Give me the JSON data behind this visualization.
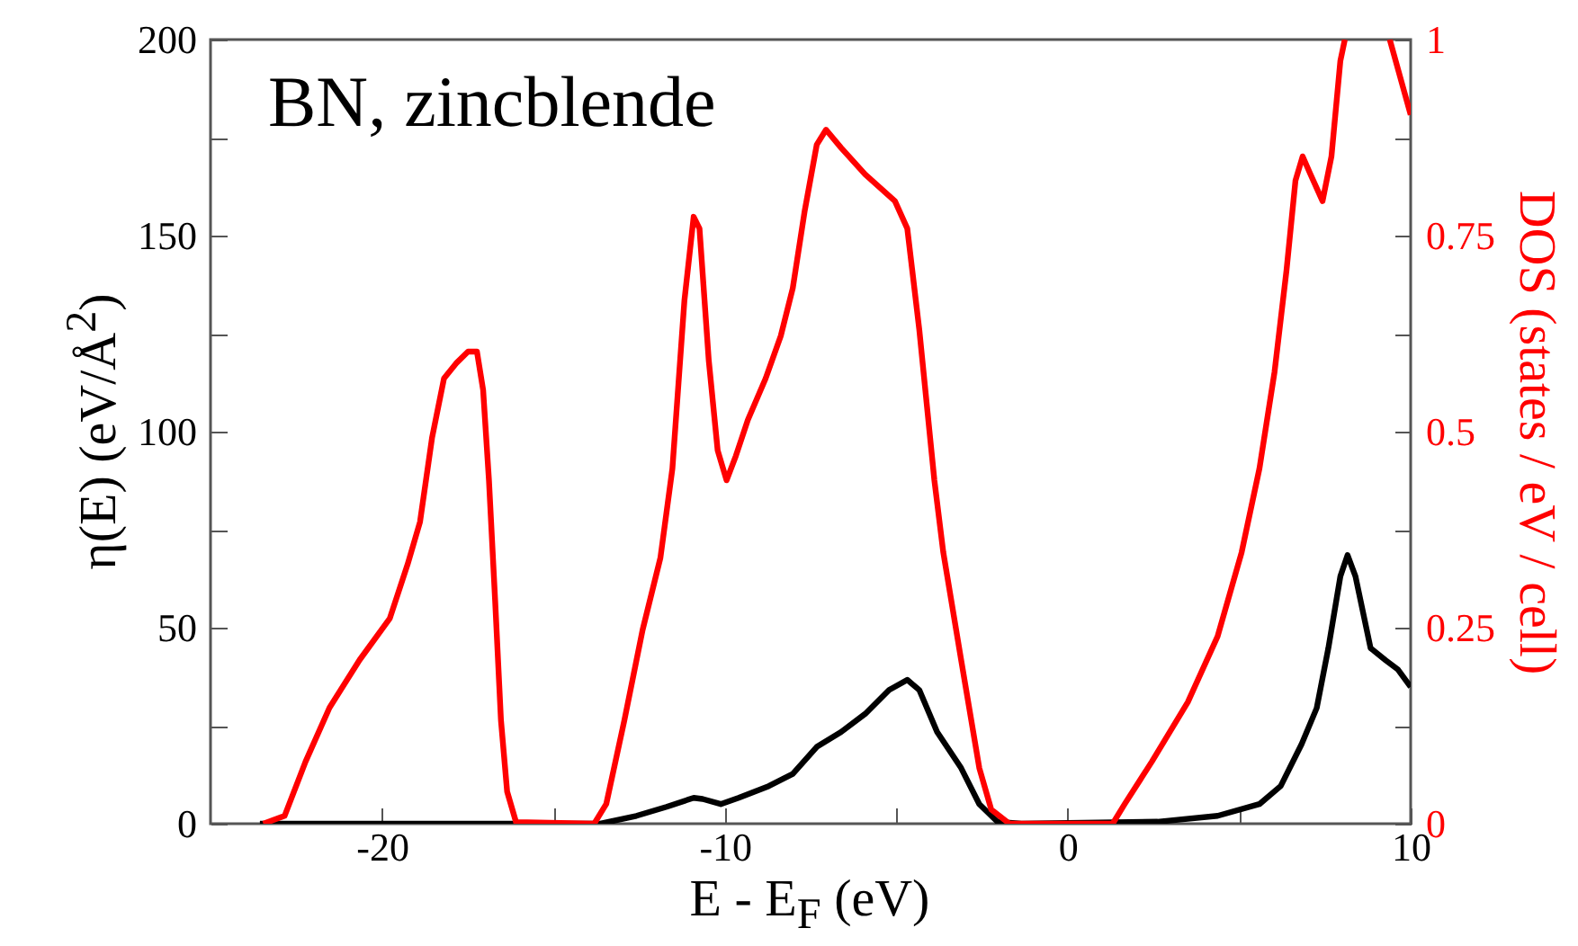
{
  "chart_data": {
    "type": "line",
    "xlabel": "E - E$_{F}$ (eV)",
    "ylabel": "η(E) (eV/Å$^{2}$)",
    "y2label": "DOS (states / eV / cell)",
    "annotations": [
      "BN, zincblende"
    ],
    "xlim": [
      -25,
      10
    ],
    "xticks": [
      -20,
      {
        "value": -15,
        "label": null
      },
      -10,
      {
        "value": -5,
        "label": null
      },
      0,
      {
        "value": 5,
        "label": null
      },
      10
    ],
    "ylim": [
      0,
      200
    ],
    "yticks": [
      0,
      {
        "value": 25,
        "label": null
      },
      50,
      {
        "value": 75,
        "label": null
      },
      100,
      {
        "value": 125,
        "label": null
      },
      150,
      {
        "value": 175,
        "label": null
      },
      200
    ],
    "y2lim": [
      0,
      1
    ],
    "y2ticks": [
      0,
      {
        "value": 0.125,
        "label": null
      },
      0.25,
      {
        "value": 0.375,
        "label": null
      },
      0.5,
      {
        "value": 0.625,
        "label": null
      },
      0.75,
      {
        "value": 0.875,
        "label": null
      },
      1
    ],
    "grid": false,
    "line_style": "solid",
    "marker": "none",
    "series": [
      {
        "color": "#000000",
        "axis": "y",
        "x": [
          -23.56,
          -13.63,
          -12.58,
          -11.7,
          -10.91,
          -10.65,
          -10.12,
          -9.6,
          -8.72,
          -8.02,
          -7.32,
          -6.61,
          -5.91,
          -5.21,
          -4.68,
          -4.33,
          -3.81,
          -3.11,
          -2.58,
          -2.05,
          -1.35,
          2.62,
          4.37,
          5.59,
          6.21,
          6.82,
          7.26,
          7.6,
          7.95,
          8.16,
          8.39,
          8.83,
          9.27,
          9.62,
          10
        ],
        "values": [
          0,
          0,
          2,
          4.3,
          6.6,
          6.3,
          5,
          6.6,
          9.6,
          12.7,
          19.6,
          23.4,
          28,
          34.1,
          36.7,
          34.1,
          23.4,
          14.2,
          5,
          0.5,
          0,
          0.5,
          2,
          5,
          9.6,
          20.3,
          29.5,
          44.8,
          63.1,
          68.5,
          63.1,
          44.8,
          41.7,
          39.4,
          34.9
        ]
      },
      {
        "color": "#ff0000",
        "axis": "y2",
        "x": [
          -23.46,
          -22.84,
          -22.23,
          -21.53,
          -20.65,
          -19.77,
          -19.25,
          -18.89,
          -18.54,
          -18.19,
          -17.84,
          -17.49,
          -17.23,
          -17.05,
          -16.88,
          -16.7,
          -16.53,
          -16.35,
          -16.09,
          -13.81,
          -13.46,
          -12.93,
          -12.4,
          -11.88,
          -11.53,
          -11.18,
          -10.91,
          -10.74,
          -10.47,
          -10.21,
          -9.95,
          -9.68,
          -9.33,
          -8.81,
          -8.37,
          -8.02,
          -7.67,
          -7.32,
          -7.05,
          -6.61,
          -5.91,
          -5.04,
          -4.68,
          -4.33,
          -3.89,
          -3.63,
          -3.11,
          -2.58,
          -2.23,
          -1.7,
          1.31,
          1.66,
          2.45,
          3.5,
          4.37,
          5.07,
          5.59,
          6.03,
          6.38,
          6.64,
          6.85,
          7.08,
          7.43,
          7.69,
          7.95,
          8.08,
          8.7,
          9.39,
          10
        ],
        "values": [
          0,
          0.01,
          0.079,
          0.148,
          0.209,
          0.262,
          0.331,
          0.385,
          0.492,
          0.568,
          0.587,
          0.602,
          0.602,
          0.553,
          0.438,
          0.285,
          0.132,
          0.041,
          0.002,
          0,
          0.025,
          0.132,
          0.247,
          0.339,
          0.453,
          0.667,
          0.774,
          0.759,
          0.591,
          0.476,
          0.438,
          0.469,
          0.515,
          0.568,
          0.622,
          0.683,
          0.782,
          0.866,
          0.885,
          0.862,
          0.828,
          0.794,
          0.759,
          0.63,
          0.438,
          0.346,
          0.209,
          0.071,
          0.018,
          0,
          0,
          0.025,
          0.079,
          0.155,
          0.239,
          0.346,
          0.453,
          0.576,
          0.706,
          0.82,
          0.851,
          0.828,
          0.794,
          0.851,
          0.973,
          1,
          null,
          1,
          0.904
        ]
      }
    ]
  }
}
